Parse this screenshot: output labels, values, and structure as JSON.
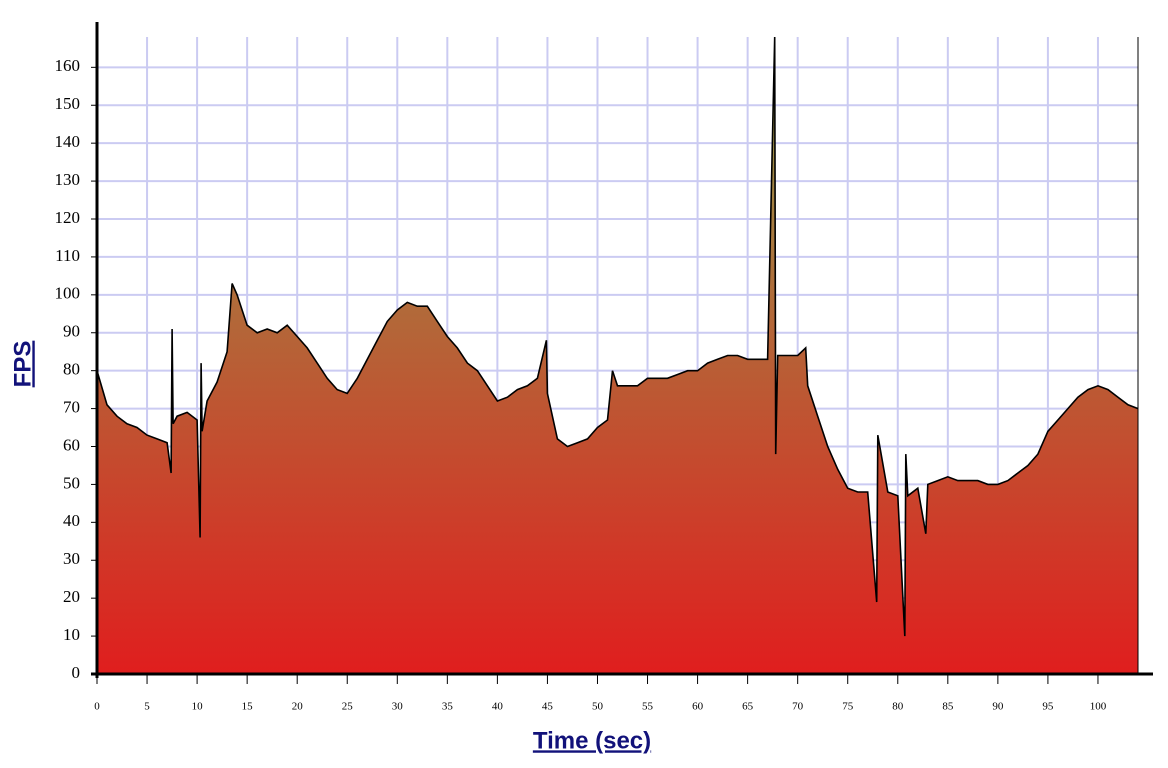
{
  "chart_data": {
    "type": "area",
    "x_label": "Time (sec)",
    "y_label": "FPS",
    "x": [
      0,
      1,
      2,
      3,
      4,
      5,
      6,
      7,
      7.4,
      7.5,
      7.6,
      8,
      9,
      10,
      10.3,
      10.4,
      10.5,
      11,
      12,
      13,
      13.5,
      14,
      15,
      16,
      17,
      18,
      19,
      20,
      21,
      22,
      23,
      24,
      25,
      26,
      27,
      28,
      29,
      30,
      31,
      32,
      33,
      34,
      35,
      36,
      37,
      38,
      39,
      40,
      41,
      42,
      43,
      44,
      44.9,
      45,
      46,
      47,
      48,
      49,
      50,
      51,
      51.5,
      52,
      53,
      54,
      55,
      56,
      57,
      58,
      59,
      60,
      61,
      62,
      63,
      64,
      65,
      66,
      67,
      67.7,
      67.8,
      68,
      69,
      70,
      70.8,
      71,
      72,
      73,
      74,
      75,
      76,
      77,
      77.9,
      78,
      79,
      80,
      80.7,
      80.8,
      81,
      82,
      82.8,
      83,
      84,
      85,
      86,
      87,
      88,
      89,
      90,
      91,
      92,
      93,
      94,
      95,
      96,
      97,
      98,
      99,
      100,
      101,
      102,
      103,
      104
    ],
    "values": [
      80,
      71,
      68,
      66,
      65,
      63,
      62,
      61,
      53,
      91,
      66,
      68,
      69,
      67,
      36,
      82,
      64,
      72,
      77,
      85,
      103,
      100,
      92,
      90,
      91,
      90,
      92,
      89,
      86,
      82,
      78,
      75,
      74,
      78,
      83,
      88,
      93,
      96,
      98,
      97,
      97,
      93,
      89,
      86,
      82,
      80,
      76,
      72,
      73,
      75,
      76,
      78,
      88,
      74,
      62,
      60,
      61,
      62,
      65,
      67,
      80,
      76,
      76,
      76,
      78,
      78,
      78,
      79,
      80,
      80,
      82,
      83,
      84,
      84,
      83,
      83,
      83,
      168,
      58,
      84,
      84,
      84,
      86,
      76,
      68,
      60,
      54,
      49,
      48,
      48,
      19,
      63,
      48,
      47,
      10,
      58,
      47,
      49,
      37,
      50,
      51,
      52,
      51,
      51,
      51,
      50,
      50,
      51,
      53,
      55,
      58,
      64,
      67,
      70,
      73,
      75,
      76,
      75,
      73,
      71,
      70
    ],
    "color": "#000000",
    "fill_colors": [
      "#e01e1e",
      "#8fa24e"
    ],
    "xlim": [
      0,
      104
    ],
    "ylim": [
      0,
      168
    ],
    "xticks": [
      0,
      5,
      10,
      15,
      20,
      25,
      30,
      35,
      40,
      45,
      50,
      55,
      60,
      65,
      70,
      75,
      80,
      85,
      90,
      95,
      100
    ],
    "yticks": [
      0,
      10,
      20,
      30,
      40,
      50,
      60,
      70,
      80,
      90,
      100,
      110,
      120,
      130,
      140,
      150,
      160
    ],
    "grid": true
  }
}
